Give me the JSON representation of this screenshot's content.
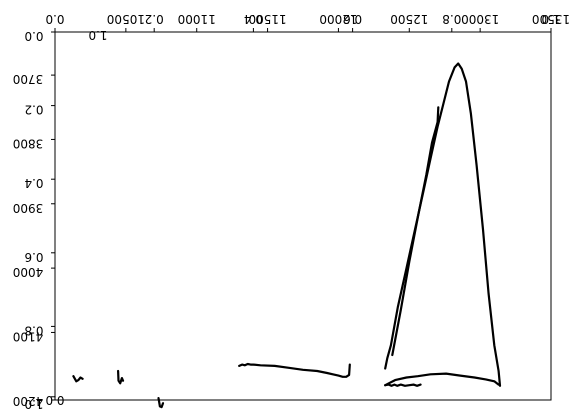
{
  "chart_data": [
    {
      "type": "line",
      "title": "",
      "xlabel": "",
      "ylabel": "",
      "x_axis": {
        "position": "top",
        "reversed": true,
        "lim": [
          13500,
          10000
        ],
        "ticks": [
          10500,
          11000,
          11500,
          12000,
          12500,
          13000,
          13500
        ],
        "tick_labels": [
          "10500",
          "11000",
          "11500",
          "12000",
          "12500",
          "13000",
          "13500"
        ]
      },
      "y_axis": {
        "position": "left",
        "inverted": true,
        "lim": [
          3633,
          4205
        ],
        "ticks": [
          3700,
          3800,
          3900,
          4000,
          4100,
          4200
        ],
        "tick_labels": [
          "3700",
          "3800",
          "3900",
          "4000",
          "4100",
          "4200"
        ]
      },
      "grid": false,
      "series": [
        {
          "values": [
            [
              10130,
              4168
            ],
            [
              10150,
              4176
            ],
            [
              10165,
              4174
            ],
            [
              10180,
              4170
            ],
            [
              10195,
              4172
            ]
          ]
        },
        {
          "values": [
            [
              10445,
              4160
            ],
            [
              10448,
              4175
            ],
            [
              10460,
              4179
            ],
            [
              10472,
              4171
            ],
            [
              10480,
              4175
            ]
          ]
        },
        {
          "values": [
            [
              10730,
              4202
            ],
            [
              10740,
              4215
            ],
            [
              10752,
              4216
            ],
            [
              10762,
              4210
            ]
          ]
        },
        {
          "values": [
            [
              11300,
              4152
            ],
            [
              11320,
              4150
            ],
            [
              11340,
              4151
            ],
            [
              11360,
              4149
            ],
            [
              11380,
              4150
            ],
            [
              11400,
              4150
            ],
            [
              11450,
              4151
            ],
            [
              11550,
              4152
            ],
            [
              11650,
              4155
            ],
            [
              11750,
              4158
            ],
            [
              11850,
              4160
            ],
            [
              11920,
              4163
            ],
            [
              11960,
              4165
            ],
            [
              12000,
              4167
            ],
            [
              12030,
              4169
            ],
            [
              12055,
              4169
            ],
            [
              12075,
              4166
            ],
            [
              12080,
              4150
            ]
          ]
        },
        {
          "values": [
            [
              12330,
              4156
            ],
            [
              12345,
              4140
            ],
            [
              12370,
              4120
            ],
            [
              12420,
              4060
            ],
            [
              12480,
              4000
            ],
            [
              12540,
              3940
            ],
            [
              12600,
              3880
            ],
            [
              12650,
              3830
            ],
            [
              12700,
              3780
            ],
            [
              12740,
              3745
            ],
            [
              12780,
              3710
            ],
            [
              12820,
              3688
            ],
            [
              12845,
              3682
            ],
            [
              12870,
              3690
            ],
            [
              12900,
              3710
            ],
            [
              12935,
              3760
            ],
            [
              12975,
              3840
            ],
            [
              13020,
              3940
            ],
            [
              13060,
              4040
            ],
            [
              13100,
              4120
            ],
            [
              13130,
              4160
            ],
            [
              13140,
              4183
            ]
          ]
        },
        {
          "values": [
            [
              12330,
              4182
            ],
            [
              12400,
              4174
            ],
            [
              12480,
              4170
            ],
            [
              12560,
              4168
            ],
            [
              12650,
              4165
            ],
            [
              12760,
              4164
            ],
            [
              12860,
              4167
            ],
            [
              12960,
              4170
            ],
            [
              13040,
              4173
            ],
            [
              13100,
              4176
            ],
            [
              13130,
              4181
            ]
          ]
        },
        {
          "values": [
            [
              12330,
              4182
            ],
            [
              12355,
              4181
            ],
            [
              12375,
              4183
            ],
            [
              12395,
              4181
            ],
            [
              12415,
              4183
            ],
            [
              12440,
              4181
            ],
            [
              12470,
              4183
            ],
            [
              12500,
              4182
            ],
            [
              12530,
              4181
            ],
            [
              12555,
              4183
            ],
            [
              12580,
              4181
            ]
          ]
        },
        {
          "values": [
            [
              12380,
              4135
            ],
            [
              12440,
              4065
            ],
            [
              12500,
              3990
            ],
            [
              12570,
              3910
            ],
            [
              12620,
              3855
            ],
            [
              12660,
              3805
            ],
            [
              12700,
              3773
            ],
            [
              12705,
              3750
            ]
          ]
        }
      ]
    },
    {
      "type": "line",
      "title": "",
      "xlabel": "",
      "ylabel": "",
      "x_axis": {
        "position": "top",
        "reversed": true,
        "lim": [
          1.0,
          0.0
        ],
        "ticks": [
          0.0,
          0.2,
          0.4,
          0.6,
          0.8,
          1.0
        ],
        "tick_labels": [
          "0.0",
          "0.2",
          "0.4",
          "0.6",
          "0.8",
          "1.0"
        ]
      },
      "y_axis": {
        "position": "left",
        "inverted": true,
        "lim": [
          0.0,
          1.0
        ],
        "ticks": [
          0.0,
          0.2,
          0.4,
          0.6,
          0.8,
          1.0
        ],
        "tick_labels": [
          "0.0",
          "0.2",
          "0.4",
          "0.6",
          "0.8",
          "1.0"
        ]
      },
      "grid": false,
      "series": []
    }
  ],
  "x_corner_label": "0.0",
  "x_corner_label_right": "1.0",
  "y_corner_label_top": "0.0",
  "y_corner_label_bottom": "1.0",
  "bottom_stray_label": "0.0"
}
